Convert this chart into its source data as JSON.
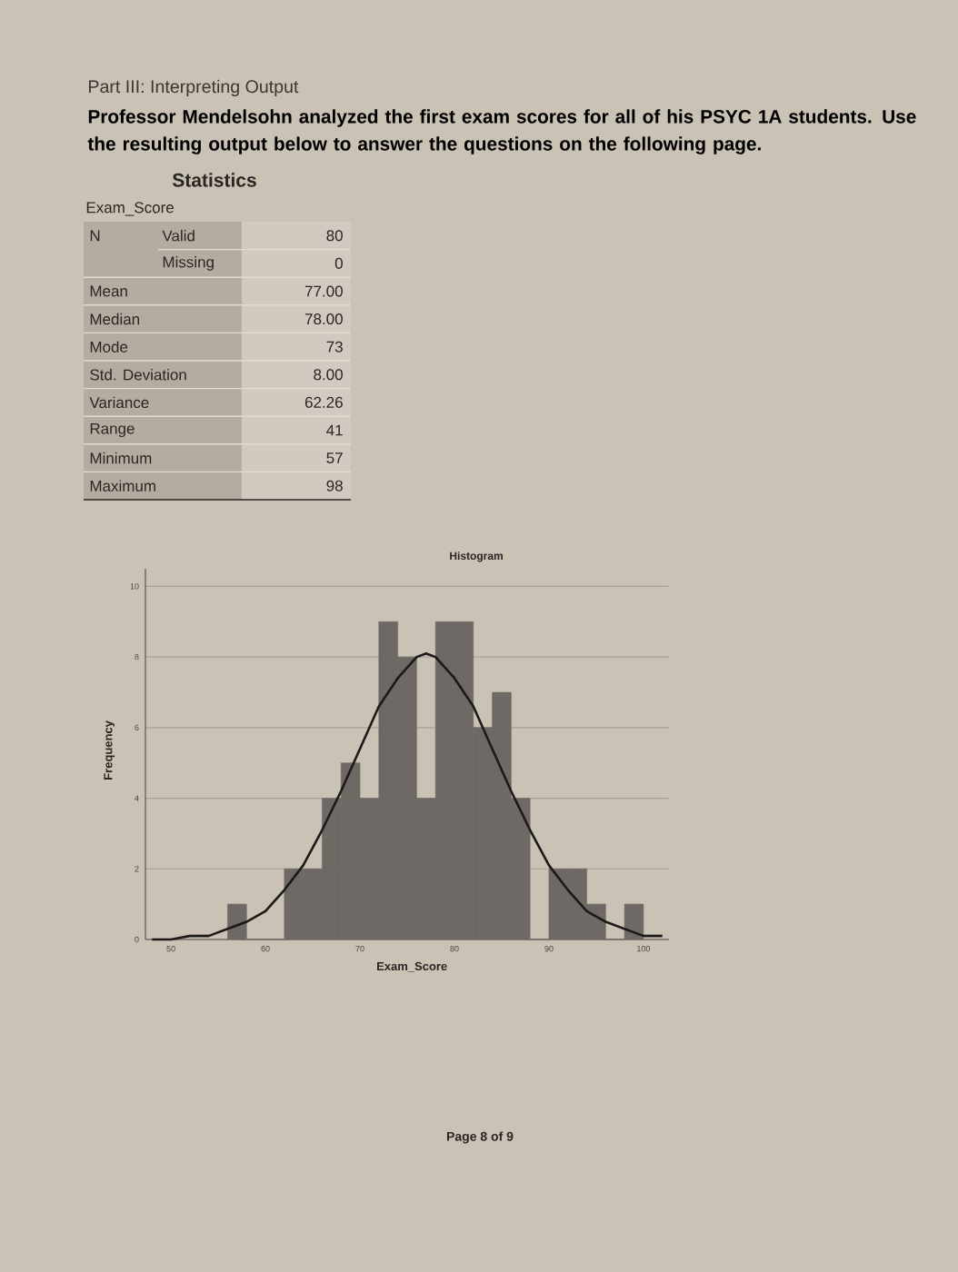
{
  "chart_data": [
    {
      "type": "other",
      "title": "Part III: Interpreting Output",
      "subtitle": "Professor Mendelsohn analyzed the first exam scores for all of his PSYC 1A students. Use the resulting output below to answer the questions on the following page."
    },
    {
      "type": "other",
      "title": "Statistics",
      "subtitle": "Exam_Score",
      "annotations": [
        "N"
      ],
      "categories": [
        "Valid",
        "Missing",
        "Mean",
        "Median",
        "Mode",
        "Std. Deviation",
        "Variance",
        "Range",
        "Minimum",
        "Maximum"
      ],
      "value_labels": [
        "80",
        "0",
        "77.00",
        "78.00",
        "73",
        "8.00",
        "62.26",
        "41",
        "57",
        "98"
      ]
    },
    {
      "type": "histogram",
      "title": "Histogram",
      "xlabel": "Exam_Score",
      "ylabel": "Frequency",
      "annotations": [
        "Page 8 of 9"
      ],
      "xlim": [
        47.3,
        102.7
      ],
      "ylim": [
        0,
        10.5
      ],
      "xticks": [
        50,
        60,
        70,
        80,
        90,
        100
      ],
      "yticks": [
        0,
        2,
        4,
        6,
        8,
        10
      ],
      "grid": "y",
      "series": [
        {
          "type": "histogram",
          "color": "#6e6964",
          "bins": [
            56,
            58,
            60,
            62,
            64,
            66,
            68,
            70,
            72,
            74,
            76,
            78,
            80,
            82,
            84,
            86,
            88,
            90,
            92,
            94,
            96,
            98,
            100
          ],
          "values": [
            1,
            0,
            0,
            2,
            2,
            4,
            5,
            4,
            9,
            8,
            4,
            9,
            9,
            6,
            7,
            4,
            0,
            2,
            2,
            1,
            0,
            1
          ]
        },
        {
          "type": "line",
          "color": "#1c1a19",
          "x": [
            48,
            50,
            52,
            54,
            56,
            58,
            60,
            62,
            64,
            66,
            68,
            70,
            72,
            74,
            76,
            77,
            78,
            80,
            82,
            84,
            86,
            88,
            90,
            92,
            94,
            96,
            98,
            100,
            102
          ],
          "values": [
            0.0,
            0.0,
            0.1,
            0.1,
            0.3,
            0.5,
            0.8,
            1.4,
            2.1,
            3.1,
            4.2,
            5.4,
            6.6,
            7.4,
            8.0,
            8.1,
            8.0,
            7.4,
            6.6,
            5.4,
            4.2,
            3.1,
            2.1,
            1.4,
            0.8,
            0.5,
            0.3,
            0.1,
            0.1
          ]
        }
      ]
    }
  ]
}
